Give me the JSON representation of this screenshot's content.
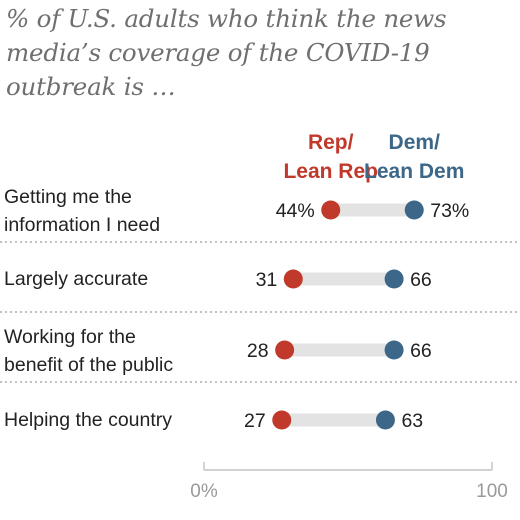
{
  "chart_data": {
    "type": "dot",
    "title": "% of U.S. adults who think the news media’s coverage of the COVID-19 outbreak is …",
    "series": [
      {
        "name": "Rep/ Lean Rep",
        "legend_lines": [
          "Rep/",
          "Lean Rep"
        ],
        "color": "#c0392b"
      },
      {
        "name": "Dem/ Lean Dem",
        "legend_lines": [
          "Dem/",
          "Lean Dem"
        ],
        "color": "#3c6788"
      }
    ],
    "categories": [
      {
        "label_lines": [
          "Getting me the",
          "information I need"
        ],
        "rep": 44,
        "dem": 73,
        "rep_label": "44%",
        "dem_label": "73%"
      },
      {
        "label_lines": [
          "Largely accurate"
        ],
        "rep": 31,
        "dem": 66,
        "rep_label": "31",
        "dem_label": "66"
      },
      {
        "label_lines": [
          "Working for the",
          "benefit of the public"
        ],
        "rep": 28,
        "dem": 66,
        "rep_label": "28",
        "dem_label": "66"
      },
      {
        "label_lines": [
          "Helping the country"
        ],
        "rep": 27,
        "dem": 63,
        "rep_label": "27",
        "dem_label": "63"
      }
    ],
    "x_range": [
      0,
      100
    ],
    "x_tick_labels": [
      "0%",
      "100"
    ],
    "connector_color": "#e3e3e3",
    "separator_color": "#9e9e9e",
    "axis_color": "#c4c4c4"
  }
}
